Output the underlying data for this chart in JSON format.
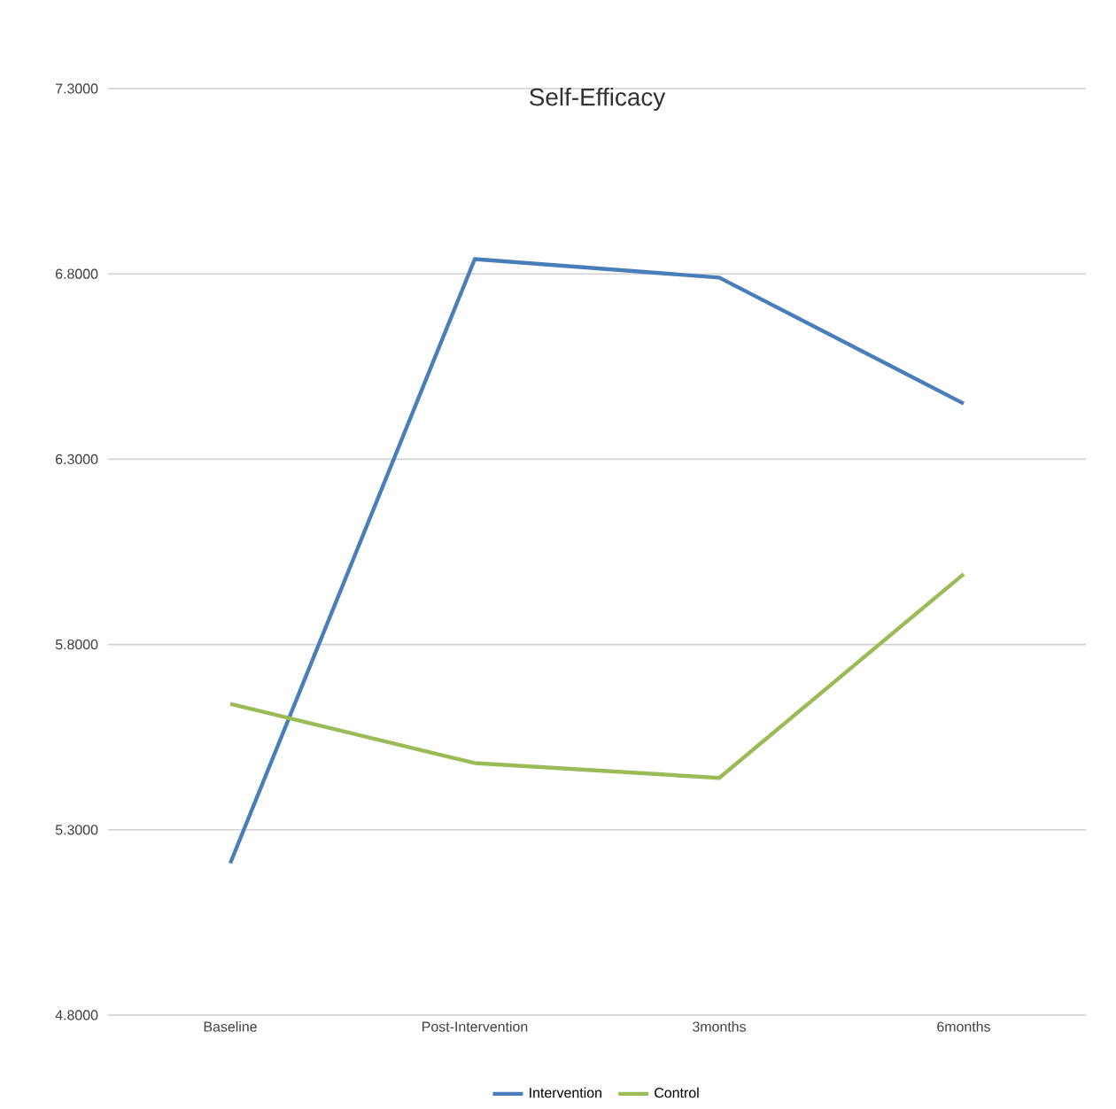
{
  "chart_data": {
    "type": "line",
    "title": "Self-Efficacy",
    "categories": [
      "Baseline",
      "Post-Intervention",
      "3months",
      "6months"
    ],
    "series": [
      {
        "name": "Intervention",
        "color": "#4a7ebb",
        "values": [
          5.21,
          6.84,
          6.79,
          6.45
        ]
      },
      {
        "name": "Control",
        "color": "#9bbb59",
        "values": [
          5.64,
          5.48,
          5.44,
          5.99
        ]
      }
    ],
    "ylim": [
      4.8,
      7.3
    ],
    "yticks": [
      {
        "value": 4.8,
        "label": "4.8000"
      },
      {
        "value": 5.3,
        "label": "5.3000"
      },
      {
        "value": 5.8,
        "label": "5.8000"
      },
      {
        "value": 6.3,
        "label": "6.3000"
      },
      {
        "value": 6.8,
        "label": "6.8000"
      },
      {
        "value": 7.3,
        "label": "7.3000"
      }
    ],
    "grid": "y",
    "legend": "bottom"
  }
}
